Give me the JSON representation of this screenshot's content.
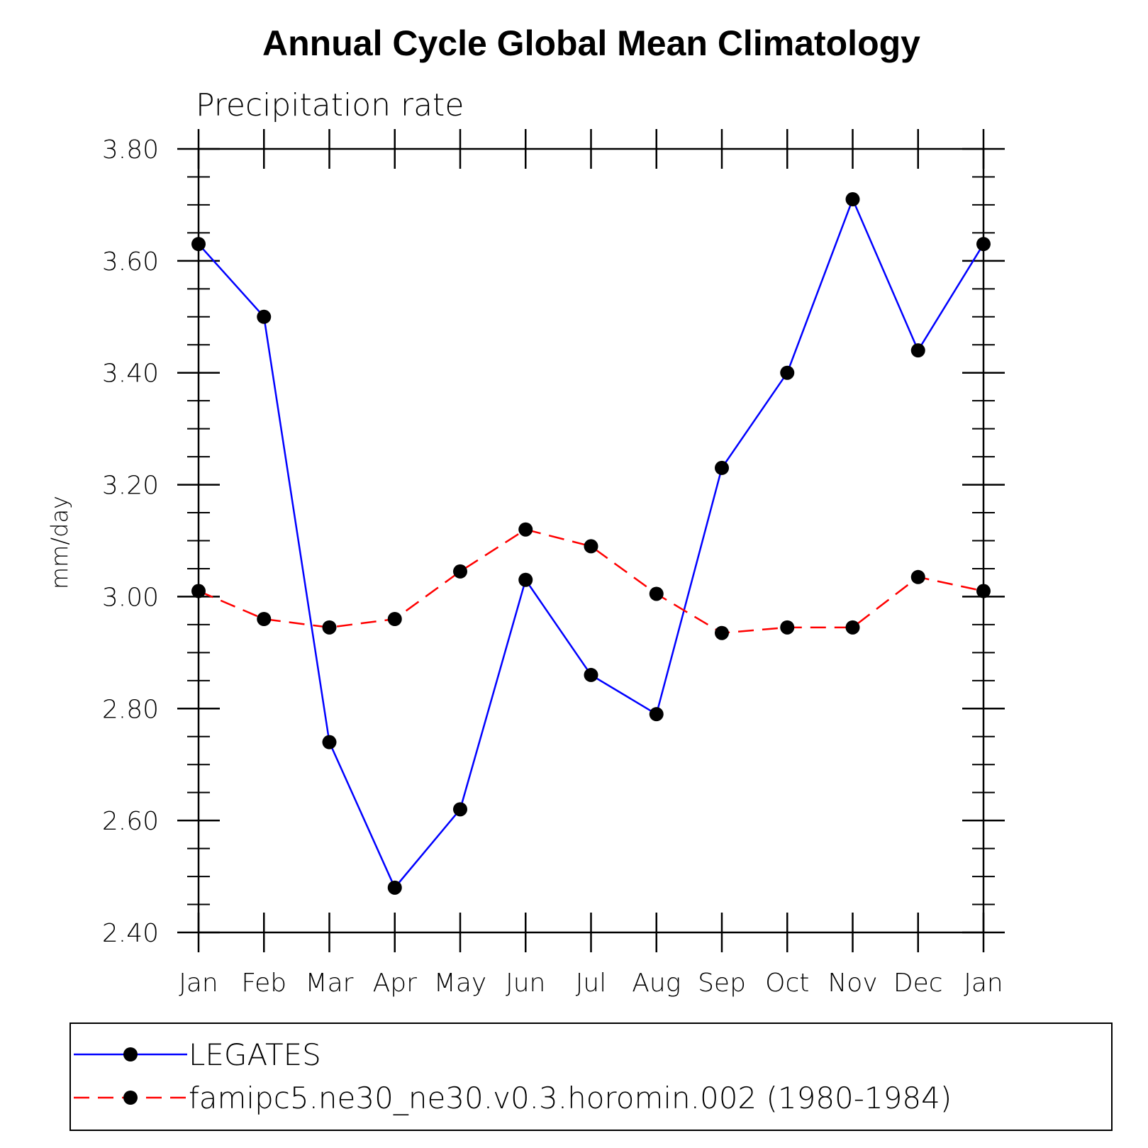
{
  "chart_data": {
    "type": "line",
    "title": "Annual Cycle Global Mean Climatology",
    "subtitle": "Precipitation rate",
    "ylabel": "mm/day",
    "xlabel": "",
    "categories": [
      "Jan",
      "Feb",
      "Mar",
      "Apr",
      "May",
      "Jun",
      "Jul",
      "Aug",
      "Sep",
      "Oct",
      "Nov",
      "Dec",
      "Jan"
    ],
    "ylim": [
      2.4,
      3.8
    ],
    "yticks": [
      "2.40",
      "2.60",
      "2.80",
      "3.00",
      "3.20",
      "3.40",
      "3.60",
      "3.80"
    ],
    "yminor_step": 0.05,
    "grid": false,
    "legend_position": "bottom",
    "series": [
      {
        "name": "LEGATES",
        "color": "#0000ff",
        "style": "solid",
        "marker": "circle",
        "values": [
          3.63,
          3.5,
          2.74,
          2.48,
          2.62,
          3.03,
          2.86,
          2.79,
          3.23,
          3.4,
          3.71,
          3.44,
          3.63
        ]
      },
      {
        "name": "famipc5.ne30_ne30.v0.3.horomin.002 (1980-1984)",
        "color": "#ff0000",
        "style": "dashed",
        "marker": "circle",
        "values": [
          3.01,
          2.96,
          2.945,
          2.96,
          3.045,
          3.12,
          3.09,
          3.005,
          2.935,
          2.945,
          2.945,
          3.035,
          3.01
        ]
      }
    ]
  }
}
